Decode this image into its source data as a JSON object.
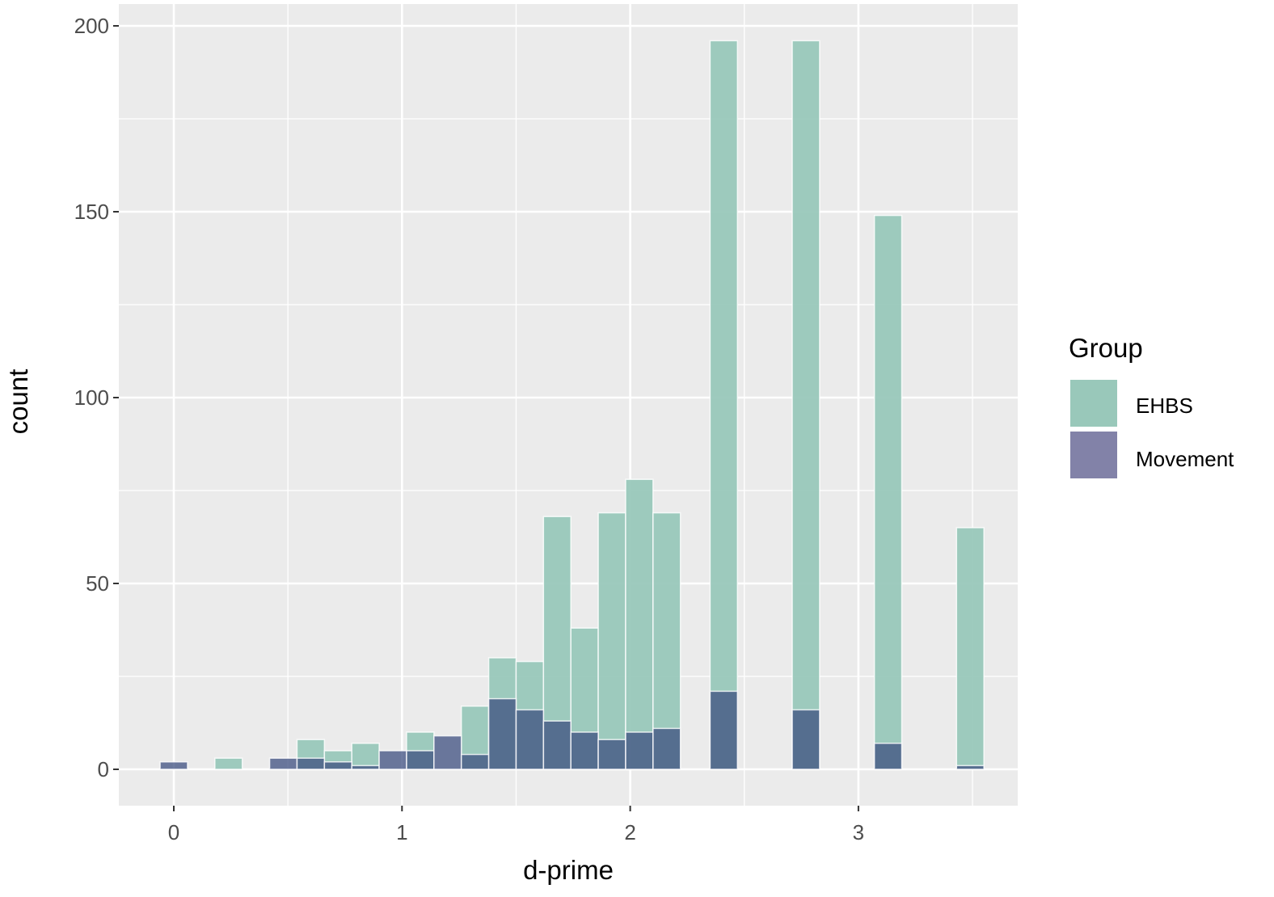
{
  "chart_data": {
    "type": "bar",
    "subtype": "overlapping histogram (position identity, alpha)",
    "title": "",
    "xlabel": "d-prime",
    "ylabel": "count",
    "xlim": [
      -0.24,
      3.71
    ],
    "ylim": [
      -10,
      207
    ],
    "x_ticks": [
      0,
      1,
      2,
      3
    ],
    "x_tick_labels": [
      "0",
      "1",
      "2",
      "3"
    ],
    "y_ticks": [
      0,
      50,
      100,
      150,
      200
    ],
    "y_tick_labels": [
      "0",
      "50",
      "100",
      "150",
      "200"
    ],
    "grid": true,
    "bin_width": 0.12,
    "legend": {
      "title": "Group",
      "position": "right",
      "entries": [
        "EHBS",
        "Movement"
      ]
    },
    "x": [
      0.0,
      0.24,
      0.48,
      0.6,
      0.72,
      0.84,
      0.96,
      1.08,
      1.2,
      1.32,
      1.44,
      1.56,
      1.68,
      1.8,
      1.92,
      2.04,
      2.16,
      2.41,
      2.77,
      3.13,
      3.49
    ],
    "series": [
      {
        "name": "EHBS",
        "color": "#99c8ba",
        "values": [
          0,
          3,
          0,
          8,
          5,
          7,
          0,
          10,
          0,
          17,
          30,
          29,
          68,
          38,
          69,
          78,
          69,
          196,
          196,
          149,
          65
        ]
      },
      {
        "name": "Movement",
        "color": "#8282a8",
        "values": [
          2,
          0,
          3,
          3,
          2,
          1,
          5,
          5,
          9,
          4,
          19,
          16,
          13,
          10,
          8,
          10,
          11,
          21,
          16,
          7,
          1
        ]
      }
    ]
  },
  "colors": {
    "panel_bg": "#ebebeb",
    "grid": "#ffffff",
    "ehbs": "#99c8ba",
    "movement": "#8282a8",
    "overlap": "#647595"
  }
}
